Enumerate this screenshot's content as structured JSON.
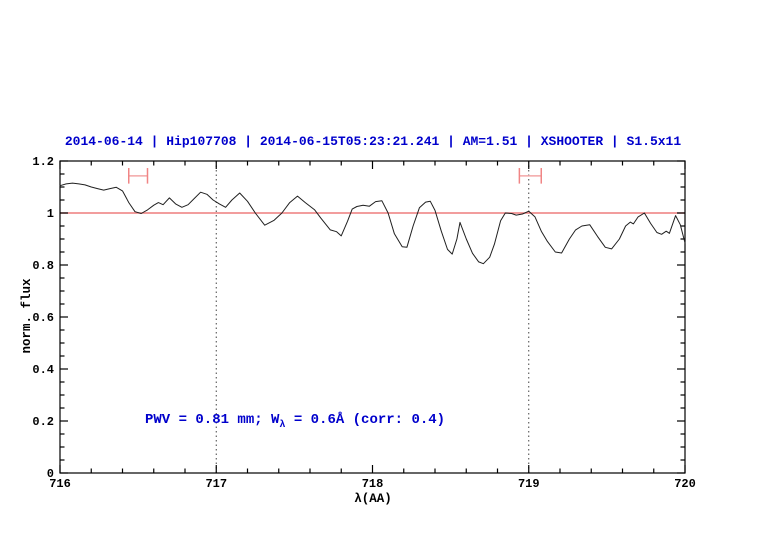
{
  "title": {
    "text": "2014-06-14 | Hip107708 | 2014-06-15T05:23:21.241 | AM=1.51 | XSHOOTER | S1.5x11",
    "color": "#0000cc"
  },
  "annotation": {
    "part1": "PWV = 0.81 mm; W",
    "subscript": "λ",
    "part2": " = 0.6Å (corr: 0.4)",
    "color": "#0000cc",
    "x_data": 716.55,
    "y_data": 0.2
  },
  "axes": {
    "x": {
      "label": "λ(AA)",
      "min": 716,
      "max": 720,
      "major_ticks": [
        716,
        717,
        718,
        719,
        720
      ],
      "major_tick_labels": [
        "716",
        "717",
        "718",
        "719",
        "720"
      ],
      "minor_step": 0.2
    },
    "y": {
      "label": "norm. flux",
      "min": 0,
      "max": 1.2,
      "major_ticks": [
        0,
        0.2,
        0.4,
        0.6,
        0.8,
        1,
        1.2
      ],
      "major_tick_labels": [
        "0",
        "0.2",
        "0.4",
        "0.6",
        "0.8",
        "1",
        "1.2"
      ],
      "minor_step": 0.05
    }
  },
  "chart_data": {
    "type": "line",
    "title": "2014-06-14 | Hip107708 | 2014-06-15T05:23:21.241 | AM=1.51 | XSHOOTER | S1.5x11",
    "xlabel": "λ(AA)",
    "ylabel": "norm. flux",
    "xlim": [
      716,
      720
    ],
    "ylim": [
      0,
      1.2
    ],
    "grid": false,
    "vertical_dotted_lines": [
      717,
      719
    ],
    "continuum_line": {
      "y": 1.0,
      "color": "#ee7d7d"
    },
    "feature_markers": [
      {
        "x_min": 716.44,
        "x_max": 716.56,
        "y": 1.143,
        "cap_half_height": 0.03
      },
      {
        "x_min": 718.94,
        "x_max": 719.08,
        "y": 1.143,
        "cap_half_height": 0.03
      }
    ],
    "marker_color": "#f08585",
    "marker_bar_color": "#f3a6a6",
    "series": [
      {
        "name": "normalized-spectrum",
        "color": "#202020",
        "points": [
          [
            716.0,
            1.105
          ],
          [
            716.04,
            1.112
          ],
          [
            716.08,
            1.115
          ],
          [
            716.12,
            1.112
          ],
          [
            716.16,
            1.108
          ],
          [
            716.2,
            1.1
          ],
          [
            716.24,
            1.094
          ],
          [
            716.28,
            1.088
          ],
          [
            716.32,
            1.094
          ],
          [
            716.36,
            1.099
          ],
          [
            716.4,
            1.085
          ],
          [
            716.44,
            1.04
          ],
          [
            716.48,
            1.005
          ],
          [
            716.52,
            0.998
          ],
          [
            716.56,
            1.012
          ],
          [
            716.6,
            1.03
          ],
          [
            716.63,
            1.04
          ],
          [
            716.66,
            1.032
          ],
          [
            716.7,
            1.058
          ],
          [
            716.74,
            1.035
          ],
          [
            716.78,
            1.022
          ],
          [
            716.82,
            1.032
          ],
          [
            716.86,
            1.056
          ],
          [
            716.9,
            1.08
          ],
          [
            716.94,
            1.072
          ],
          [
            716.98,
            1.05
          ],
          [
            717.02,
            1.035
          ],
          [
            717.06,
            1.022
          ],
          [
            717.1,
            1.05
          ],
          [
            717.15,
            1.077
          ],
          [
            717.2,
            1.045
          ],
          [
            717.25,
            1.0
          ],
          [
            717.31,
            0.953
          ],
          [
            717.37,
            0.972
          ],
          [
            717.42,
            1.0
          ],
          [
            717.47,
            1.04
          ],
          [
            717.52,
            1.065
          ],
          [
            717.57,
            1.04
          ],
          [
            717.63,
            1.012
          ],
          [
            717.67,
            0.98
          ],
          [
            717.73,
            0.935
          ],
          [
            717.77,
            0.928
          ],
          [
            717.8,
            0.912
          ],
          [
            717.84,
            0.968
          ],
          [
            717.87,
            1.015
          ],
          [
            717.9,
            1.025
          ],
          [
            717.94,
            1.03
          ],
          [
            717.98,
            1.026
          ],
          [
            718.02,
            1.044
          ],
          [
            718.06,
            1.047
          ],
          [
            718.1,
            1.0
          ],
          [
            718.14,
            0.92
          ],
          [
            718.19,
            0.87
          ],
          [
            718.22,
            0.868
          ],
          [
            718.26,
            0.95
          ],
          [
            718.3,
            1.02
          ],
          [
            718.34,
            1.042
          ],
          [
            718.37,
            1.045
          ],
          [
            718.4,
            1.01
          ],
          [
            718.44,
            0.93
          ],
          [
            718.48,
            0.86
          ],
          [
            718.51,
            0.842
          ],
          [
            718.54,
            0.9
          ],
          [
            718.56,
            0.964
          ],
          [
            718.6,
            0.9
          ],
          [
            718.64,
            0.845
          ],
          [
            718.68,
            0.812
          ],
          [
            718.71,
            0.805
          ],
          [
            718.75,
            0.83
          ],
          [
            718.78,
            0.88
          ],
          [
            718.82,
            0.97
          ],
          [
            718.85,
            1.0
          ],
          [
            718.89,
            0.998
          ],
          [
            718.92,
            0.992
          ],
          [
            718.96,
            0.996
          ],
          [
            719.0,
            1.007
          ],
          [
            719.04,
            0.985
          ],
          [
            719.08,
            0.93
          ],
          [
            719.12,
            0.89
          ],
          [
            719.17,
            0.85
          ],
          [
            719.21,
            0.846
          ],
          [
            719.26,
            0.9
          ],
          [
            719.3,
            0.935
          ],
          [
            719.34,
            0.95
          ],
          [
            719.39,
            0.955
          ],
          [
            719.44,
            0.91
          ],
          [
            719.49,
            0.868
          ],
          [
            719.53,
            0.862
          ],
          [
            719.58,
            0.9
          ],
          [
            719.62,
            0.95
          ],
          [
            719.65,
            0.965
          ],
          [
            719.67,
            0.958
          ],
          [
            719.7,
            0.985
          ],
          [
            719.74,
            1.0
          ],
          [
            719.78,
            0.96
          ],
          [
            719.82,
            0.925
          ],
          [
            719.85,
            0.918
          ],
          [
            719.88,
            0.93
          ],
          [
            719.9,
            0.922
          ],
          [
            719.94,
            0.99
          ],
          [
            719.97,
            0.955
          ],
          [
            720.0,
            0.885
          ]
        ]
      }
    ]
  }
}
